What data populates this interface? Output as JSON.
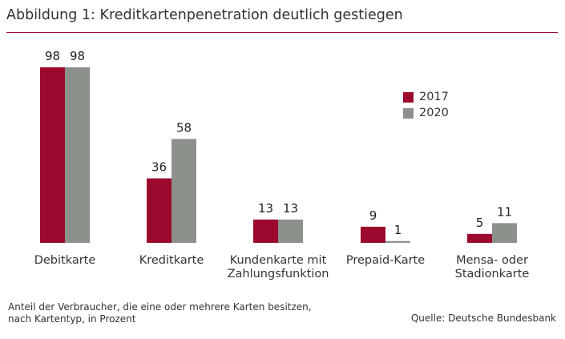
{
  "title": "Abbildung 1: Kreditkartenpenetration deutlich gestiegen",
  "note_line1": "Anteil der Verbraucher, die eine oder mehrere Karten besitzen,",
  "note_line2": "nach Kartentyp, in Prozent",
  "source": "Quelle: Deutsche Bundesbank",
  "colors": {
    "series_2017": "#9b0a2e",
    "series_2020": "#8c918c",
    "rule": "#9b0a2e"
  },
  "chart_data": {
    "type": "bar",
    "categories": [
      [
        "Debitkarte"
      ],
      [
        "Kreditkarte"
      ],
      [
        "Kundenkarte mit",
        "Zahlungsfunktion"
      ],
      [
        "Prepaid-Karte"
      ],
      [
        "Mensa- oder",
        "Stadionkarte"
      ]
    ],
    "series": [
      {
        "name": "2017",
        "values": [
          98,
          36,
          13,
          9,
          5
        ]
      },
      {
        "name": "2020",
        "values": [
          98,
          58,
          13,
          1,
          11
        ]
      }
    ],
    "ylim": [
      0,
      100
    ],
    "grid": false,
    "legend": "top-right"
  }
}
